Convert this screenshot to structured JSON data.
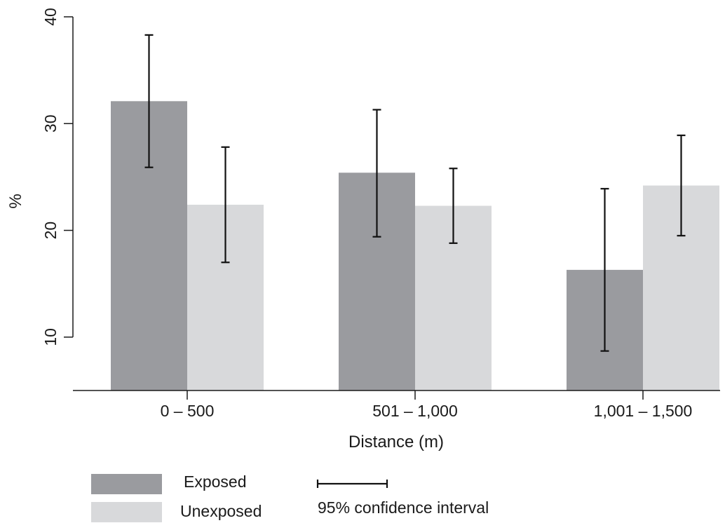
{
  "chart_data": {
    "type": "bar",
    "categories": [
      "0 – 500",
      "501 – 1,000",
      "1,001 – 1,500"
    ],
    "series": [
      {
        "name": "Exposed",
        "values": [
          32.1,
          25.4,
          16.3
        ],
        "ci_low": [
          25.9,
          19.4,
          8.7
        ],
        "ci_high": [
          38.3,
          31.3,
          23.9
        ]
      },
      {
        "name": "Unexposed",
        "values": [
          22.4,
          22.3,
          24.2
        ],
        "ci_low": [
          17.0,
          18.8,
          19.5
        ],
        "ci_high": [
          27.8,
          25.8,
          28.9
        ]
      }
    ],
    "xlabel": "Distance (m)",
    "ylabel": "%",
    "ylim": [
      5,
      40
    ],
    "yticks": [
      10,
      20,
      30,
      40
    ],
    "grid": false,
    "legend_position": "bottom",
    "ci_legend_label": "95% confidence interval",
    "colors": {
      "exposed": "#9a9b9f",
      "unexposed": "#d8d9db",
      "axis": "#1a1a1a",
      "errorbar": "#111111"
    }
  }
}
